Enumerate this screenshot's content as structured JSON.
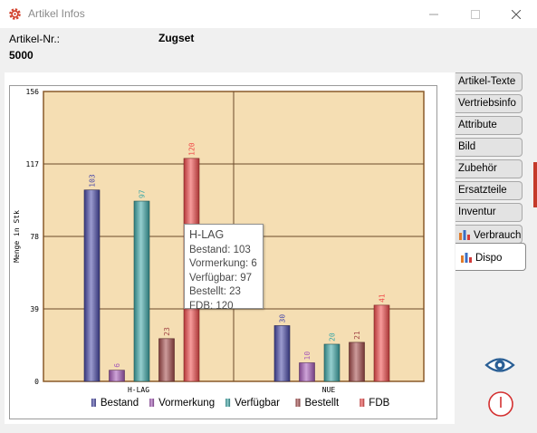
{
  "window": {
    "title": "Artikel Infos",
    "icon": "gear-icon"
  },
  "header": {
    "artnr_label": "Artikel-Nr.:",
    "zugset_label": "Zugset",
    "artnr_value": "5000"
  },
  "tabs": [
    {
      "label": "Artikel-Texte"
    },
    {
      "label": "Vertriebsinfo"
    },
    {
      "label": "Attribute"
    },
    {
      "label": "Bild"
    },
    {
      "label": "Zubehör"
    },
    {
      "label": "Ersatzteile"
    },
    {
      "label": "Inventur"
    },
    {
      "label": "Verbrauch",
      "icon": "bar-chart-icon"
    },
    {
      "label": "Dispo",
      "icon": "bar-chart-icon",
      "active": true
    }
  ],
  "tooltip": {
    "title": "H-LAG",
    "lines": [
      "Bestand: 103",
      "Vormerkung: 6",
      "Verfügbar: 97",
      "Bestellt: 23",
      "FDB: 120"
    ]
  },
  "chart_data": {
    "type": "bar",
    "categories": [
      "H-LAG",
      "NUE"
    ],
    "series": [
      {
        "name": "Bestand",
        "values": [
          103,
          30
        ],
        "color": "#4a4aa8"
      },
      {
        "name": "Vormerkung",
        "values": [
          6,
          10
        ],
        "color": "#a65ab8"
      },
      {
        "name": "Verfügbar",
        "values": [
          97,
          20
        ],
        "color": "#3ea8a8"
      },
      {
        "name": "Bestellt",
        "values": [
          23,
          21
        ],
        "color": "#a44a4a"
      },
      {
        "name": "FDB",
        "values": [
          120,
          41
        ],
        "color": "#f04a4a"
      }
    ],
    "ylabel": "Menge in Stk",
    "ylim": [
      0,
      156
    ],
    "yticks": [
      0,
      39,
      78,
      117,
      156
    ],
    "grid": true,
    "legend_position": "bottom",
    "plot_background": "#f5deb3"
  }
}
